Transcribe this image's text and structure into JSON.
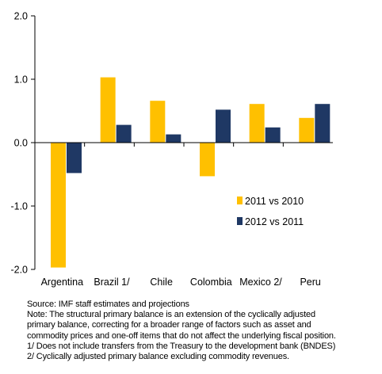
{
  "chart_data": {
    "type": "bar",
    "categories": [
      "Argentina",
      "Brazil 1/",
      "Chile",
      "Colombia",
      "Mexico 2/",
      "Peru"
    ],
    "series": [
      {
        "name": "2011 vs 2010",
        "color": "#FFC000",
        "values": [
          -1.97,
          1.03,
          0.66,
          -0.53,
          0.61,
          0.39
        ]
      },
      {
        "name": "2012 vs 2011",
        "color": "#1F3864",
        "values": [
          -0.48,
          0.28,
          0.13,
          0.52,
          0.24,
          0.61
        ]
      }
    ],
    "ylim": [
      -2.0,
      2.0
    ],
    "yticks": [
      "2.0",
      "1.0",
      "0.0",
      "-1.0",
      "-2.0"
    ],
    "ytick_values": [
      2.0,
      1.0,
      0.0,
      -1.0,
      -2.0
    ],
    "legend_position": "right, below zero line",
    "grid": false
  },
  "notes": {
    "source": "Source: IMF staff estimates and projections",
    "note_1": "Note: The structural primary balance  is an extension  of the cyclically adjusted",
    "note_2": "primary balance, correcting for a broader  range of factors such  as asset  and",
    "note_3": "commodity prices and one-off items that do not affect the underlying fiscal position.",
    "footnote_1": "1/ Does not include transfers from the Treasury to the development  bank (BNDES)",
    "footnote_2": "2/ Cyclically adjusted primary balance  excluding commodity revenues."
  }
}
